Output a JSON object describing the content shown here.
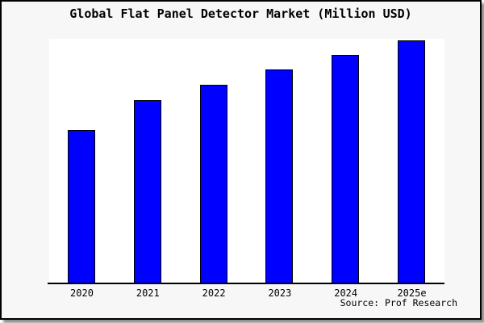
{
  "chart": {
    "title": "Global Flat Panel Detector Market (Million USD)",
    "source": "Source: Prof Research",
    "colors": {
      "bar_fill": "#0000ff",
      "bar_border": "#000000",
      "frame_background": "#f7f7f7",
      "plot_background": "#ffffff",
      "frame_border": "#000000",
      "axis": "#000000",
      "text": "#000000",
      "shadow": "#909090"
    }
  },
  "chart_data": {
    "type": "bar",
    "title": "Global Flat Panel Detector Market (Million USD)",
    "categories": [
      "2020",
      "2021",
      "2022",
      "2023",
      "2024",
      "2025e"
    ],
    "values": [
      62.9,
      75.3,
      81.6,
      88.0,
      94.0,
      100.0
    ],
    "value_note": "No y-axis, gridlines or data labels are shown in the chart; values are relative bar heights normalized so that 2025e = 100.",
    "xlabel": "",
    "ylabel": "",
    "ylim": [
      0,
      101
    ],
    "grid": false,
    "legend": false,
    "bar_color": "#0000ff",
    "source": "Source: Prof Research"
  }
}
